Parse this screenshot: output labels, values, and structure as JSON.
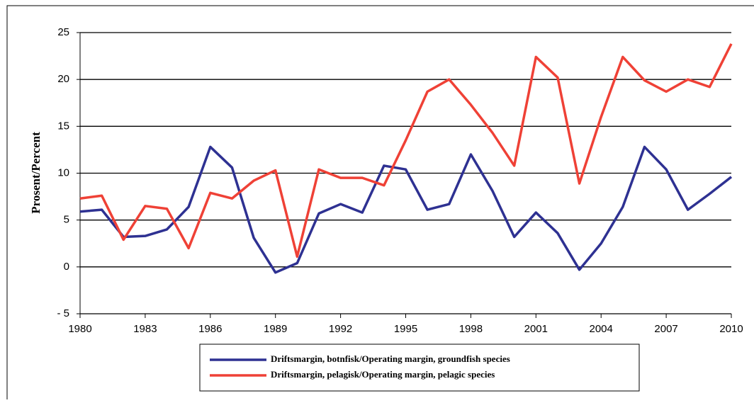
{
  "chart_data": {
    "type": "line",
    "y_label": "Prosent/Percent",
    "x": [
      1980,
      1981,
      1982,
      1983,
      1984,
      1985,
      1986,
      1987,
      1988,
      1989,
      1990,
      1991,
      1992,
      1993,
      1994,
      1995,
      1996,
      1997,
      1998,
      1999,
      2000,
      2001,
      2002,
      2003,
      2004,
      2005,
      2006,
      2007,
      2008,
      2009,
      2010
    ],
    "series": [
      {
        "name": "Driftsmargin, botnfisk/Operating margin, groundfish species",
        "color": "#2e3192",
        "values": [
          5.9,
          6.1,
          3.2,
          3.3,
          4.0,
          6.4,
          12.8,
          10.6,
          3.1,
          -0.6,
          0.4,
          5.7,
          6.7,
          5.8,
          10.8,
          10.4,
          6.1,
          6.7,
          12.0,
          8.1,
          3.2,
          5.8,
          3.6,
          -0.3,
          2.5,
          6.4,
          12.8,
          10.4,
          6.1,
          7.8,
          9.6
        ]
      },
      {
        "name": "Driftsmargin, pelagisk/Operating margin, pelagic species",
        "color": "#ef4136",
        "values": [
          7.3,
          7.6,
          2.9,
          6.5,
          6.2,
          2.0,
          7.9,
          7.3,
          9.2,
          10.3,
          1.1,
          10.4,
          9.5,
          9.5,
          8.7,
          13.5,
          18.7,
          20.0,
          17.3,
          14.3,
          10.8,
          22.4,
          20.2,
          8.9,
          16.0,
          22.4,
          19.9,
          18.7,
          20.0,
          19.2,
          23.8
        ]
      }
    ],
    "xlim": [
      1980,
      2010
    ],
    "xticks": [
      1980,
      1983,
      1986,
      1989,
      1992,
      1995,
      1998,
      2001,
      2004,
      2007,
      2010
    ],
    "ylim": [
      -5,
      25
    ],
    "yticks": [
      {
        "value": -5,
        "label": "- 5",
        "color": "#ef4136"
      },
      0,
      5,
      10,
      15,
      20,
      25
    ],
    "grid": true
  }
}
